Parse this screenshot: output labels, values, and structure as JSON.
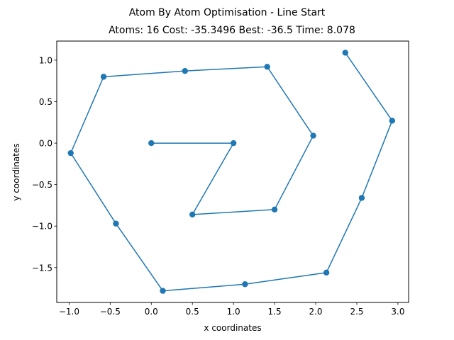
{
  "chart_data": {
    "type": "line",
    "title": "Atom By Atom Optimisation - Line Start",
    "subtitle": "Atoms: 16 Cost: -35.3496 Best: -36.5 Time: 8.078",
    "xlabel": "x coordinates",
    "ylabel": "y coordinates",
    "xlim": [
      -1.15,
      3.13
    ],
    "ylim": [
      -1.92,
      1.23
    ],
    "xticks": [
      -1.0,
      -0.5,
      0.0,
      0.5,
      1.0,
      1.5,
      2.0,
      2.5,
      3.0
    ],
    "xtick_labels": [
      "−1.0",
      "−0.5",
      "0.0",
      "0.5",
      "1.0",
      "1.5",
      "2.0",
      "2.5",
      "3.0"
    ],
    "yticks": [
      -1.5,
      -1.0,
      -0.5,
      0.0,
      0.5,
      1.0
    ],
    "ytick_labels": [
      "−1.5",
      "−1.0",
      "−0.5",
      "0.0",
      "0.5",
      "1.0"
    ],
    "grid": false,
    "color": "#1f77b4",
    "series": [
      {
        "x": [
          0.0,
          1.0,
          0.5,
          1.5,
          1.97,
          1.41,
          0.41,
          -0.58,
          -0.98,
          -0.43,
          0.14,
          1.14,
          2.13,
          2.56,
          2.93,
          2.36
        ],
        "y": [
          0.0,
          0.0,
          -0.86,
          -0.8,
          0.09,
          0.92,
          0.87,
          0.8,
          -0.12,
          -0.97,
          -1.78,
          -1.7,
          -1.56,
          -0.66,
          0.27,
          1.09
        ]
      }
    ]
  }
}
